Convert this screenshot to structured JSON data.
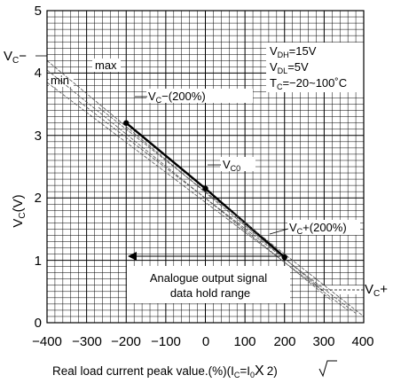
{
  "chart_data": {
    "type": "line",
    "xlabel_main": "Real load current peak value.(%)(I",
    "xlabel_sub1": "C",
    "xlabel_eq": "=I",
    "xlabel_sub2": "0",
    "xlabel_times": "X",
    "xlabel_sqrt_arg": "2",
    "xlabel_close": ")",
    "ylabel_main": "V",
    "ylabel_sub": "C",
    "ylabel_unit": "(V)",
    "xlim": [
      -400,
      400
    ],
    "ylim": [
      0,
      5
    ],
    "x_ticks": [
      "−400",
      "−300",
      "−200",
      "−100",
      "0",
      "100",
      "200",
      "300",
      "400"
    ],
    "y_ticks": [
      "0",
      "1",
      "2",
      "3",
      "4",
      "5"
    ],
    "grid": true,
    "series": [
      {
        "name": "VC0",
        "style": "bold",
        "color": "#000000",
        "x": [
          -200,
          0,
          200
        ],
        "y": [
          3.2,
          2.15,
          1.05
        ]
      },
      {
        "style": "thin",
        "color": "#555555",
        "x": [
          -400,
          300
        ],
        "y": [
          4.2,
          0.5
        ]
      },
      {
        "style": "thin",
        "color": "#555555",
        "x": [
          -400,
          320
        ],
        "y": [
          4.05,
          0.35
        ]
      },
      {
        "style": "thin",
        "color": "#555555",
        "x": [
          -400,
          360
        ],
        "y": [
          3.85,
          0.2
        ]
      },
      {
        "style": "thin",
        "color": "#555555",
        "x": [
          -320,
          380
        ],
        "y": [
          3.55,
          0.15
        ]
      },
      {
        "style": "thin",
        "color": "#555555",
        "x": [
          -270,
          400
        ],
        "y": [
          3.45,
          0.1
        ]
      }
    ],
    "points": [
      {
        "x": -200,
        "y": 3.2
      },
      {
        "x": 0,
        "y": 2.15
      },
      {
        "x": 200,
        "y": 1.05
      }
    ],
    "annotations": {
      "vc_minus": {
        "main": "V",
        "sub": "C",
        "rest": "−"
      },
      "vc_plus": {
        "main": "V",
        "sub": "C",
        "rest": "+"
      },
      "max": "max",
      "min": "min",
      "vc_minus_200": {
        "main": "V",
        "sub": "C",
        "rest": "−(200%)"
      },
      "vc0": {
        "main": "V",
        "sub": "C0"
      },
      "vc_plus_200": {
        "main": "V",
        "sub": "C",
        "rest": "+(200%)"
      },
      "hold_line1": "Analogue output signal",
      "hold_line2": "data hold range",
      "cond_vdh": {
        "main": "V",
        "sub": "DH",
        "rest": "=15V"
      },
      "cond_vdl": {
        "main": "V",
        "sub": "DL",
        "rest": "=5V"
      },
      "cond_tc": {
        "main": "T",
        "sub": "C",
        "rest": "=−20~100˚C"
      }
    }
  }
}
